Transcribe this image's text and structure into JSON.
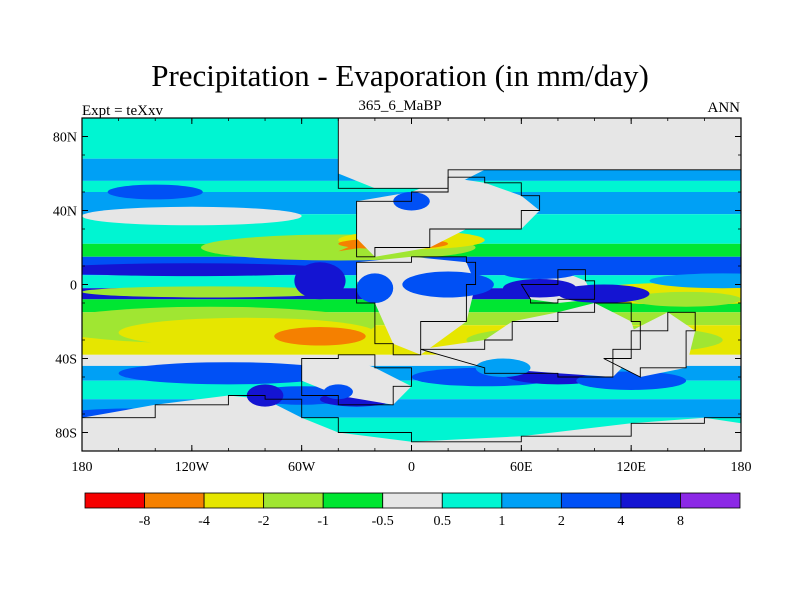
{
  "title": "Precipitation - Evaporation (in mm/day)",
  "left_label": "Expt = teXxv",
  "center_label": "365_6_MaBP",
  "right_label": "ANN",
  "axes": {
    "x_ticks": [
      {
        "value": -180,
        "label": "180"
      },
      {
        "value": -120,
        "label": "120W"
      },
      {
        "value": -60,
        "label": "60W"
      },
      {
        "value": 0,
        "label": "0"
      },
      {
        "value": 60,
        "label": "60E"
      },
      {
        "value": 120,
        "label": "120E"
      },
      {
        "value": 180,
        "label": "180"
      }
    ],
    "y_ticks": [
      {
        "value": 80,
        "label": "80N"
      },
      {
        "value": 40,
        "label": "40N"
      },
      {
        "value": 0,
        "label": "0"
      },
      {
        "value": -40,
        "label": "40S"
      },
      {
        "value": -80,
        "label": "80S"
      }
    ],
    "lon_range": [
      -180,
      180
    ],
    "lat_range": [
      -90,
      90
    ]
  },
  "colorbar": {
    "colors": [
      "#f50000",
      "#f58000",
      "#e6e600",
      "#a0e632",
      "#00e632",
      "#e6e6e6",
      "#00f5d2",
      "#00a0f5",
      "#0050f5",
      "#1414d2",
      "#8c28e6"
    ],
    "labels": [
      "-8",
      "-4",
      "-2",
      "-1",
      "-0.5",
      "0.5",
      "1",
      "2",
      "4",
      "8"
    ]
  }
}
